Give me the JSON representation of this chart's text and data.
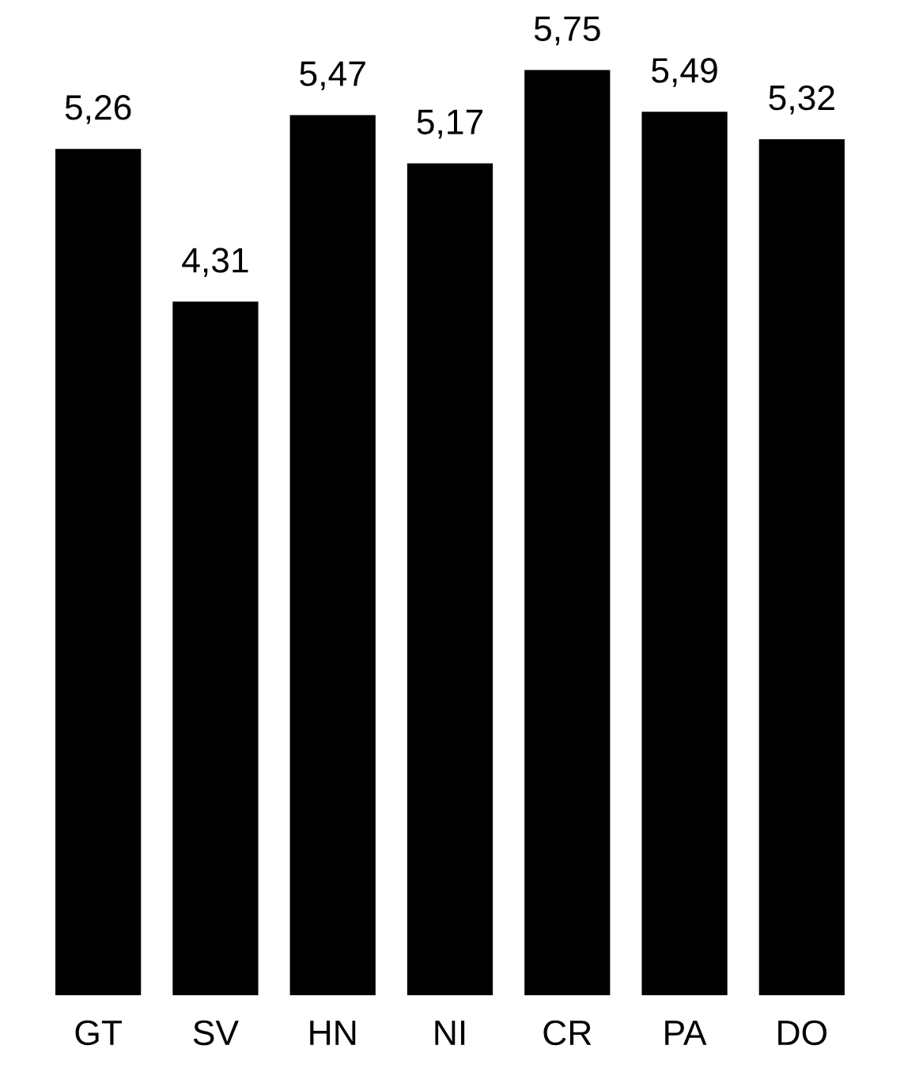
{
  "chart_data": {
    "type": "bar",
    "categories": [
      "GT",
      "SV",
      "HN",
      "NI",
      "CR",
      "PA",
      "DO"
    ],
    "values": [
      5.26,
      4.31,
      5.47,
      5.17,
      5.75,
      5.49,
      5.32
    ],
    "value_labels": [
      "5,26",
      "4,31",
      "5,47",
      "5,17",
      "5,75",
      "5,49",
      "5,32"
    ],
    "color": "#000000"
  }
}
